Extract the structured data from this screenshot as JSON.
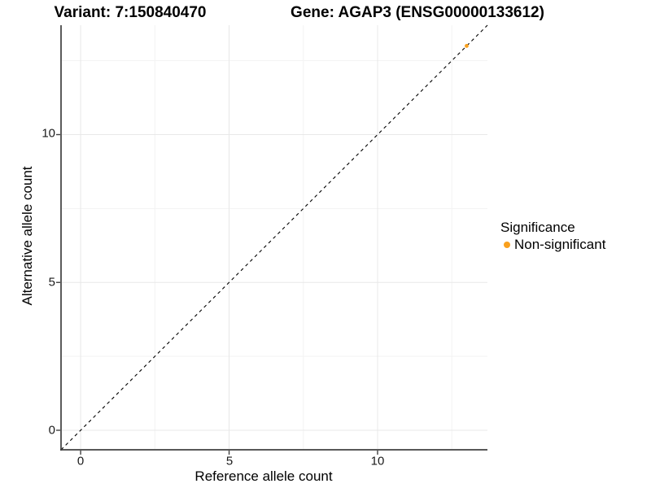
{
  "titles": {
    "variant": "Variant: 7:150840470",
    "gene": "Gene: AGAP3 (ENSG00000133612)"
  },
  "axes": {
    "x": {
      "label": "Reference allele count",
      "ticks": [
        "0",
        "5",
        "10"
      ]
    },
    "y": {
      "label": "Alternative allele count",
      "ticks": [
        "0",
        "5",
        "10"
      ]
    }
  },
  "legend": {
    "title": "Significance",
    "items": [
      {
        "label": "Non-significant",
        "color": "#F9A01D"
      }
    ]
  },
  "colors": {
    "point_orange": "#F9A01D",
    "axis_line": "#404040",
    "grid_major": "#e8e8e8",
    "grid_minor": "#f3f3f3",
    "reference_line": "#000000",
    "background": "#ffffff"
  },
  "chart_data": {
    "type": "scatter",
    "title_left": "Variant: 7:150840470",
    "title_right": "Gene: AGAP3 (ENSG00000133612)",
    "xlabel": "Reference allele count",
    "ylabel": "Alternative allele count",
    "xlim": [
      -0.66,
      13.7
    ],
    "ylim": [
      -0.66,
      13.7
    ],
    "x_major_ticks": [
      0,
      5,
      10
    ],
    "y_major_ticks": [
      0,
      5,
      10
    ],
    "x_minor_ticks": [
      2.5,
      7.5,
      12.5
    ],
    "y_minor_ticks": [
      2.5,
      7.5,
      12.5
    ],
    "grid": true,
    "legend_position": "right",
    "reference_line": {
      "type": "identity y=x",
      "style": "dashed",
      "color": "#000000"
    },
    "series": [
      {
        "name": "Non-significant",
        "color": "#F9A01D",
        "points": [
          {
            "x": 13,
            "y": 13
          }
        ]
      }
    ]
  }
}
